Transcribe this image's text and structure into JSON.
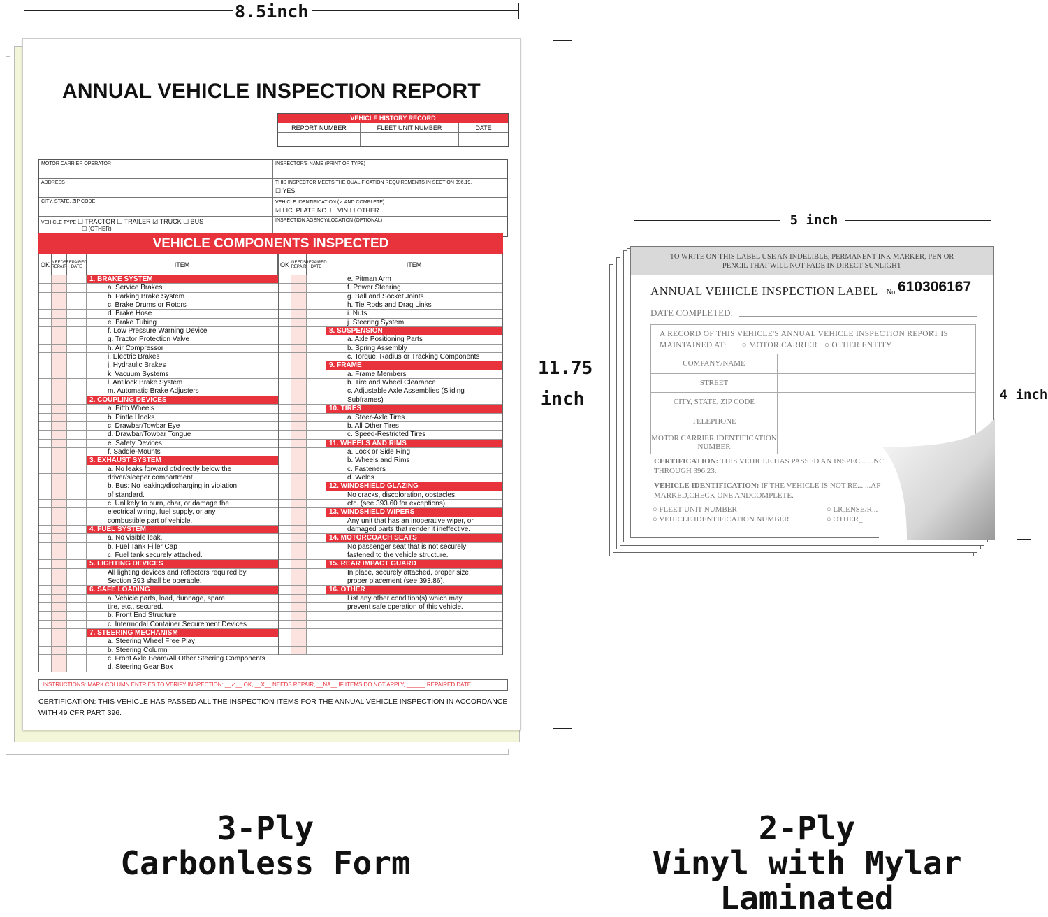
{
  "dimensions": {
    "form_width": "8.5inch",
    "form_height_value": "11.75",
    "form_height_unit": "inch",
    "label_width": "5 inch",
    "label_height": "4 inch"
  },
  "form": {
    "title": "ANNUAL VEHICLE INSPECTION REPORT",
    "history": {
      "header": "VEHICLE HISTORY RECORD",
      "columns": [
        "REPORT NUMBER",
        "FLEET UNIT NUMBER",
        "DATE"
      ]
    },
    "info": {
      "motor_carrier": "MOTOR CARRIER OPERATOR",
      "inspector_name": "INSPECTOR'S NAME (PRINT OR TYPE)",
      "address": "ADDRESS",
      "qualification": "THIS INSPECTOR MEETS THE QUALIFICATION REQUIREMENTS IN SECTION 396.19.",
      "yes": "☐ YES",
      "city": "CITY, STATE, ZIP CODE",
      "vehicle_id": "VEHICLE IDENTIFICATION (✓ AND COMPLETE)",
      "vehicle_id_options": "☑ LIC. PLATE NO.   ☐ VIN   ☐ OTHER",
      "vehicle_type": "VEHICLE TYPE",
      "vehicle_type_options": "☐ TRACTOR  ☐ TRAILER  ☑ TRUCK  ☐ BUS",
      "vehicle_type_other": "☐ (OTHER)",
      "agency": "INSPECTION AGENCY/LOCATION (OPTIONAL)"
    },
    "components_header": "VEHICLE COMPONENTS INSPECTED",
    "table_headers": {
      "ok": "OK",
      "needs_repair": "NEEDS REPAIR",
      "repaired_date": "REPAIRED DATE",
      "item": "ITEM"
    },
    "left_rows": [
      {
        "s": 1,
        "t": "1.  BRAKE SYSTEM"
      },
      {
        "t": "a.  Service Brakes"
      },
      {
        "t": "b.  Parking Brake System"
      },
      {
        "t": "c.  Brake Drums or Rotors"
      },
      {
        "t": "d.  Brake Hose"
      },
      {
        "t": "e.  Brake Tubing"
      },
      {
        "t": "f.  Low Pressure Warning Device"
      },
      {
        "t": "g.  Tractor Protection Valve"
      },
      {
        "t": "h.  Air Compressor"
      },
      {
        "t": "i.  Electric Brakes"
      },
      {
        "t": "j.  Hydraulic Brakes"
      },
      {
        "t": "k.  Vacuum Systems"
      },
      {
        "t": "l.  Antilock Brake System"
      },
      {
        "t": "m. Automatic Brake Adjusters"
      },
      {
        "s": 1,
        "t": "2.  COUPLING DEVICES"
      },
      {
        "t": "a.  Fifth Wheels"
      },
      {
        "t": "b.  Pintle Hooks"
      },
      {
        "t": "c.  Drawbar/Towbar Eye"
      },
      {
        "t": "d.  Drawbar/Towbar Tongue"
      },
      {
        "t": "e.  Safety Devices"
      },
      {
        "t": "f.  Saddle-Mounts"
      },
      {
        "s": 1,
        "t": "3.  EXHAUST SYSTEM"
      },
      {
        "t": "a.  No leaks forward of/directly below the"
      },
      {
        "t": "     driver/sleeper compartment."
      },
      {
        "t": "b.  Bus: No leaking/discharging in violation"
      },
      {
        "t": "     of standard."
      },
      {
        "t": "c.  Unlikely to burn, char, or damage the"
      },
      {
        "t": "     electrical wiring, fuel supply, or any"
      },
      {
        "t": "     combustible part of vehicle."
      },
      {
        "s": 1,
        "t": "4.  FUEL SYSTEM"
      },
      {
        "t": "a.  No visible leak."
      },
      {
        "t": "b.  Fuel Tank Filler Cap"
      },
      {
        "t": "c.  Fuel tank securely attached."
      },
      {
        "s": 1,
        "t": "5.  LIGHTING DEVICES"
      },
      {
        "t": "All lighting devices and reflectors required by"
      },
      {
        "t": "Section 393 shall be operable."
      },
      {
        "s": 1,
        "t": "6.  SAFE LOADING"
      },
      {
        "t": "a.  Vehicle parts, load, dunnage, spare"
      },
      {
        "t": "     tire, etc., secured."
      },
      {
        "t": "b.  Front End Structure"
      },
      {
        "t": "c.  Intermodal Container Securement Devices"
      },
      {
        "s": 1,
        "t": "7.  STEERING MECHANISM"
      },
      {
        "t": "a.  Steering Wheel Free Play"
      },
      {
        "t": "b.  Steering Column"
      },
      {
        "t": "c.  Front Axle Beam/All Other Steering Components"
      },
      {
        "t": "d.  Steering Gear Box"
      }
    ],
    "right_rows": [
      {
        "t": "e.  Pitman Arm"
      },
      {
        "t": "f.  Power Steering"
      },
      {
        "t": "g.  Ball and Socket Joints"
      },
      {
        "t": "h.  Tie Rods and Drag Links"
      },
      {
        "t": "i.  Nuts"
      },
      {
        "t": "j.  Steering System"
      },
      {
        "s": 1,
        "t": "8.  SUSPENSION"
      },
      {
        "t": "a.  Axle Positioning Parts"
      },
      {
        "t": "b.  Spring Assembly"
      },
      {
        "t": "c.  Torque, Radius or Tracking Components"
      },
      {
        "s": 1,
        "t": "9.  FRAME"
      },
      {
        "t": "a.  Frame Members"
      },
      {
        "t": "b.  Tire and Wheel Clearance"
      },
      {
        "t": "c.  Adjustable Axle Assemblies (Sliding"
      },
      {
        "t": "     Subframes)"
      },
      {
        "s": 1,
        "t": "10. TIRES"
      },
      {
        "t": "a.  Steer-Axle Tires"
      },
      {
        "t": "b.  All Other Tires"
      },
      {
        "t": "c.  Speed-Restricted Tires"
      },
      {
        "s": 1,
        "t": "11. WHEELS AND RIMS"
      },
      {
        "t": "a.  Lock or Side Ring"
      },
      {
        "t": "b.  Wheels and Rims"
      },
      {
        "t": "c.  Fasteners"
      },
      {
        "t": "d.  Welds"
      },
      {
        "s": 1,
        "t": "12. WINDSHIELD GLAZING"
      },
      {
        "t": "No cracks, discoloration, obstacles,"
      },
      {
        "t": "etc. (see 393.60 for exceptions)."
      },
      {
        "s": 1,
        "t": "13. WINDSHIELD WIPERS"
      },
      {
        "t": "Any unit that has an inoperative wiper, or"
      },
      {
        "t": "damaged parts that render it ineffective."
      },
      {
        "s": 1,
        "t": "14. MOTORCOACH SEATS"
      },
      {
        "t": "No passenger seat that is not securely"
      },
      {
        "t": "fastened to the vehicle structure."
      },
      {
        "s": 1,
        "t": "15. REAR IMPACT GUARD"
      },
      {
        "t": "In place, securely attached, proper size,"
      },
      {
        "t": "proper placement (see 393.86)."
      },
      {
        "s": 1,
        "t": "16. OTHER"
      },
      {
        "t": "List any other condition(s) which may"
      },
      {
        "t": "prevent safe operation of this vehicle."
      },
      {
        "t": ""
      },
      {
        "t": ""
      },
      {
        "t": ""
      },
      {
        "t": ""
      },
      {
        "t": ""
      }
    ],
    "instructions": "INSTRUCTIONS: MARK COLUMN ENTRIES TO VERIFY INSPECTION: __✓__ OK, __X__ NEEDS REPAIR, __NA__ IF ITEMS DO NOT APPLY, ______ REPAIRED DATE",
    "certification": "CERTIFICATION: THIS VEHICLE HAS PASSED ALL THE INSPECTION ITEMS FOR THE ANNUAL VEHICLE INSPECTION IN ACCORDANCE WITH 49 CFR PART 396."
  },
  "label": {
    "notice": "TO WRITE ON THIS LABEL USE AN INDELIBLE, PERMANENT INK MARKER, PEN OR PENCIL THAT WILL NOT FADE IN DIRECT SUNLIGHT",
    "title": "ANNUAL VEHICLE INSPECTION LABEL",
    "no_prefix": "No.",
    "number": "610306167",
    "date_completed": "DATE COMPLETED:",
    "record_text": "A RECORD OF THIS VEHICLE'S ANNUAL VEHICLE INSPECTION REPORT IS",
    "maintained_at": "MAINTAINED AT:",
    "opt_motor_carrier": "○ MOTOR CARRIER",
    "opt_other_entity": "○ OTHER ENTITY",
    "fields": [
      "COMPANY/NAME",
      "STREET",
      "CITY, STATE, ZIP CODE",
      "TELEPHONE",
      "MOTOR CARRIER IDENTIFICATION NUMBER"
    ],
    "certification_label": "CERTIFICATION:",
    "certification_text": "THIS VEHICLE HAS PASSED AN INSPEC... ...NCE WITH 49CFR 396.17 THROUGH 396.23.",
    "vehicle_id_label": "VEHICLE IDENTIFICATION:",
    "vehicle_id_text": "IF THE VEHICLE IS NOT RE... ...ARLY, AND PERMANENTLY MARKED,CHECK ONE ANDCOMPLETE.",
    "opt_fleet": "○ FLEET UNIT NUMBER",
    "opt_license": "○ LICENSE/R... ...RATION NUMBER",
    "opt_vin": "○ VEHICLE IDENTIFICATION NUMBER",
    "opt_other": "○ OTHER_"
  },
  "captions": {
    "left_line1": "3-Ply",
    "left_line2": "Carbonless Form",
    "right_line1": "2-Ply",
    "right_line2": "Vinyl with Mylar Laminated"
  },
  "colors": {
    "form_red": "#e8323c",
    "carbon_yellow": "#f3f6d8",
    "label_gray": "#d9d9d9"
  }
}
